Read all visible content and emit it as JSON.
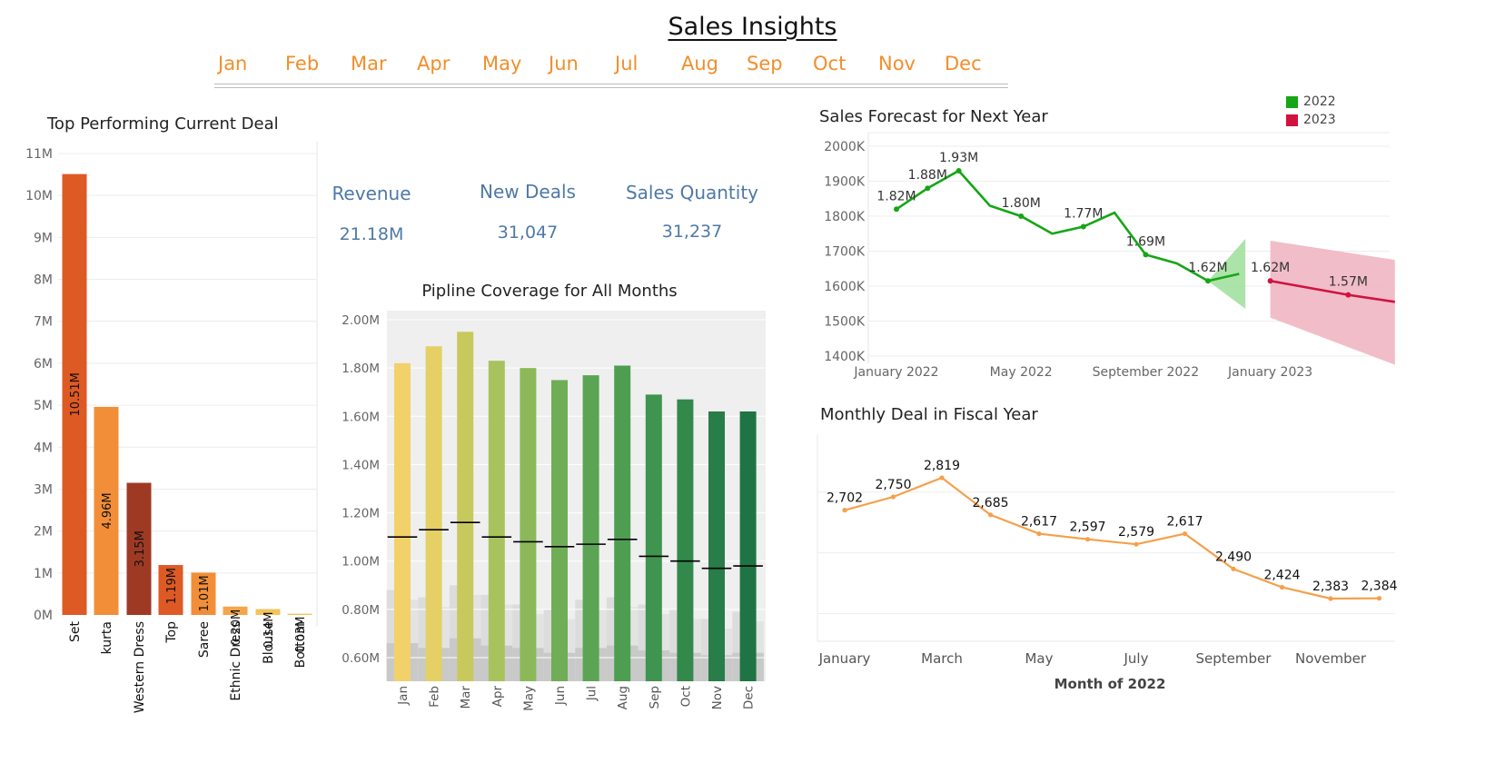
{
  "page": {
    "title": "Sales Insights",
    "months": [
      "Jan",
      "Feb",
      "Mar",
      "Apr",
      "May",
      "Jun",
      "Jul",
      "Aug",
      "Sep",
      "Oct",
      "Nov",
      "Dec"
    ]
  },
  "kpis": {
    "revenue": {
      "label": "Revenue",
      "value": "21.18M"
    },
    "new_deals": {
      "label": "New Deals",
      "value": "31,047"
    },
    "sales_quantity": {
      "label": "Sales Quantity",
      "value": "31,237"
    }
  },
  "colors": {
    "month_link": "#f28e2b",
    "kpi": "#4e79a7",
    "forecast_2022": "#16a616",
    "forecast_2023": "#d1123f",
    "monthly_line": "#f5a04a"
  },
  "chart_data": [
    {
      "id": "top_deal",
      "type": "bar",
      "title": "Top Performing Current Deal",
      "categories": [
        "Set",
        "kurta",
        "Western Dress",
        "Top",
        "Saree",
        "Ethnic Dress",
        "Blouse",
        "Bottom"
      ],
      "values": [
        10.51,
        4.96,
        3.15,
        1.19,
        1.01,
        0.2,
        0.14,
        0.03
      ],
      "labels": [
        "10.51M",
        "4.96M",
        "3.15M",
        "1.19M",
        "1.01M",
        "0.20M",
        "0.14M",
        "0.03M"
      ],
      "colors": [
        "#de5a24",
        "#f28e38",
        "#9e3a24",
        "#de5a24",
        "#f28e38",
        "#f5a64a",
        "#f2c45a",
        "#f2c45a"
      ],
      "y_ticks": [
        "0M",
        "1M",
        "2M",
        "3M",
        "4M",
        "5M",
        "6M",
        "7M",
        "8M",
        "9M",
        "10M",
        "11M"
      ],
      "ylim": [
        0,
        11
      ]
    },
    {
      "id": "pipeline",
      "type": "bar",
      "title": "Pipline Coverage for All Months",
      "categories": [
        "Jan",
        "Feb",
        "Mar",
        "Apr",
        "May",
        "Jun",
        "Jul",
        "Aug",
        "Sep",
        "Oct",
        "Nov",
        "Dec"
      ],
      "values": [
        1.82,
        1.89,
        1.95,
        1.83,
        1.8,
        1.75,
        1.77,
        1.81,
        1.69,
        1.67,
        1.62,
        1.62
      ],
      "targets": [
        1.1,
        1.13,
        1.16,
        1.1,
        1.08,
        1.06,
        1.07,
        1.09,
        1.02,
        1.0,
        0.97,
        0.98
      ],
      "background_upper": [
        0.88,
        0.85,
        0.9,
        0.86,
        0.82,
        0.8,
        0.84,
        0.85,
        0.82,
        0.8,
        0.76,
        0.79
      ],
      "background_lower": [
        0.66,
        0.64,
        0.68,
        0.65,
        0.64,
        0.62,
        0.64,
        0.65,
        0.63,
        0.62,
        0.61,
        0.62
      ],
      "colors": [
        "#f2d16a",
        "#e4d064",
        "#c8c95c",
        "#a8c25e",
        "#8cb85a",
        "#6fad56",
        "#5aa454",
        "#4e9e52",
        "#3f9450",
        "#33894c",
        "#287d48",
        "#1f7444"
      ],
      "y_ticks": [
        "0.60M",
        "0.80M",
        "1.00M",
        "1.20M",
        "1.40M",
        "1.60M",
        "1.80M",
        "2.00M"
      ],
      "ylim": [
        0.55,
        2.05
      ]
    },
    {
      "id": "forecast",
      "type": "line",
      "title": "Sales Forecast for Next Year",
      "x_ticks": [
        "January 2022",
        "May 2022",
        "September 2022",
        "January 2023"
      ],
      "y_ticks": [
        "1400K",
        "1500K",
        "1600K",
        "1700K",
        "1800K",
        "1900K",
        "2000K"
      ],
      "ylim": [
        1380,
        2020
      ],
      "legend": [
        {
          "name": "2022",
          "color": "#16a616"
        },
        {
          "name": "2023",
          "color": "#d1123f"
        }
      ],
      "series": [
        {
          "name": "2022",
          "month_index": [
            0,
            1,
            2,
            3,
            4,
            5,
            6,
            7,
            8,
            9,
            10,
            11
          ],
          "values": [
            1820,
            1880,
            1930,
            1830,
            1800,
            1750,
            1770,
            1810,
            1690,
            1665,
            1615,
            1635
          ],
          "point_labels": [
            "1.82M",
            "1.88M",
            "1.93M",
            "",
            "1.80M",
            "",
            "1.77M",
            "",
            "1.69M",
            "",
            "1.62M",
            ""
          ],
          "band_end": {
            "upper": 1735,
            "lower": 1535
          }
        },
        {
          "name": "2023",
          "month_index": [
            12.0,
            14.5,
            16.0
          ],
          "values": [
            1615,
            1575,
            1555
          ],
          "point_labels": [
            "1.62M",
            "1.57M",
            ""
          ],
          "band": {
            "upper_start": 1730,
            "upper_end": 1675,
            "lower_start": 1510,
            "lower_end": 1375
          }
        }
      ]
    },
    {
      "id": "monthly_deal",
      "type": "line",
      "title": "Monthly Deal in Fiscal Year",
      "xlabel": "Month of 2022",
      "x_ticks": [
        "January",
        "March",
        "May",
        "July",
        "September",
        "November"
      ],
      "categories": [
        "Jan",
        "Feb",
        "Mar",
        "Apr",
        "May",
        "Jun",
        "Jul",
        "Aug",
        "Sep",
        "Oct",
        "Nov",
        "Dec"
      ],
      "values": [
        2702,
        2750,
        2819,
        2685,
        2617,
        2597,
        2579,
        2617,
        2490,
        2424,
        2383,
        2384
      ],
      "labels": [
        "2,702",
        "2,750",
        "2,819",
        "2,685",
        "2,617",
        "2,597",
        "2,579",
        "2,617",
        "2,490",
        "2,424",
        "2,383",
        "2,384"
      ],
      "ylim": [
        2300,
        2860
      ]
    }
  ]
}
